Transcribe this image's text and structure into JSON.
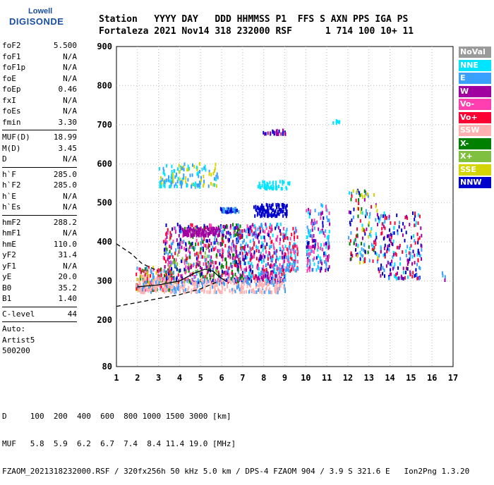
{
  "logo": {
    "line1": "Lowell",
    "line2": "DIGISONDE"
  },
  "header": {
    "line1": "Station   YYYY DAY   DDD HHMMSS P1  FFS S AXN PPS IGA PS",
    "line2": "Fortaleza 2021 Nov14 318 232000 RSF      1 714 100 10+ 11"
  },
  "params": [
    {
      "group": [
        {
          "label": "foF2",
          "value": "5.500"
        },
        {
          "label": "foF1",
          "value": "N/A"
        },
        {
          "label": "foF1p",
          "value": "N/A"
        },
        {
          "label": "foE",
          "value": "N/A"
        },
        {
          "label": "foEp",
          "value": "0.46"
        },
        {
          "label": "fxI",
          "value": "N/A"
        },
        {
          "label": "foEs",
          "value": "N/A"
        },
        {
          "label": "fmin",
          "value": "3.30"
        }
      ]
    },
    {
      "group": [
        {
          "label": "MUF(D)",
          "value": "18.99"
        },
        {
          "label": "M(D)",
          "value": "3.45"
        },
        {
          "label": "D",
          "value": "N/A"
        }
      ]
    },
    {
      "group": [
        {
          "label": "h`F",
          "value": "285.0"
        },
        {
          "label": "h`F2",
          "value": "285.0"
        },
        {
          "label": "h`E",
          "value": "N/A"
        },
        {
          "label": "h`Es",
          "value": "N/A"
        }
      ]
    },
    {
      "group": [
        {
          "label": "hmF2",
          "value": "288.2"
        },
        {
          "label": "hmF1",
          "value": "N/A"
        },
        {
          "label": "hmE",
          "value": "110.0"
        },
        {
          "label": "yF2",
          "value": "31.4"
        },
        {
          "label": "yF1",
          "value": "N/A"
        },
        {
          "label": "yE",
          "value": "20.0"
        },
        {
          "label": "B0",
          "value": "35.2"
        },
        {
          "label": "B1",
          "value": "1.40"
        }
      ]
    },
    {
      "group": [
        {
          "label": "C-level",
          "value": "44"
        }
      ]
    },
    {
      "group": [
        {
          "label": "Auto:",
          "value": ""
        },
        {
          "label": "Artist5",
          "value": ""
        },
        {
          "label": "500200",
          "value": ""
        }
      ]
    }
  ],
  "footer": {
    "d_line": "D     100  200  400  600  800 1000 1500 3000 [km]",
    "muf_line": "MUF   5.8  5.9  6.2  6.7  7.4  8.4 11.4 19.0 [MHz]",
    "file_line": "FZAOM_2021318232000.RSF / 320fx256h 50 kHz 5.0 km / DPS-4 FZAOM 904 / 3.9 S 321.6 E   Ion2Png 1.3.20"
  },
  "chart_data": {
    "type": "scatter",
    "title": "",
    "xlabel": "",
    "ylabel": "",
    "xlim": [
      1,
      17
    ],
    "ylim": [
      80,
      900
    ],
    "x_ticks": [
      1,
      2,
      3,
      4,
      5,
      6,
      7,
      8,
      9,
      10,
      11,
      12,
      13,
      14,
      15,
      16,
      17
    ],
    "y_ticks": [
      80,
      200,
      300,
      400,
      500,
      600,
      700,
      800,
      900
    ],
    "grid": true,
    "legend_position": "right",
    "legend": [
      {
        "name": "NoVal",
        "color": "#9a9a9a"
      },
      {
        "name": "NNE",
        "color": "#00e5ff"
      },
      {
        "name": "E",
        "color": "#3aa0ff"
      },
      {
        "name": "W",
        "color": "#a000a0"
      },
      {
        "name": "Vo-",
        "color": "#ff3fb0"
      },
      {
        "name": "Vo+",
        "color": "#ff0033"
      },
      {
        "name": "SSW",
        "color": "#ffb0b0"
      },
      {
        "name": "X-",
        "color": "#008000"
      },
      {
        "name": "X+",
        "color": "#80c040"
      },
      {
        "name": "SSE",
        "color": "#d4d400"
      },
      {
        "name": "NNW",
        "color": "#0000cc"
      }
    ],
    "clusters": [
      {
        "x": [
          1.9,
          3.6
        ],
        "y": [
          280,
          340
        ],
        "n": 220,
        "colors": [
          4,
          5,
          6,
          2,
          7,
          9
        ]
      },
      {
        "x": [
          3.2,
          5.9
        ],
        "y": [
          300,
          450
        ],
        "n": 420,
        "colors": [
          3,
          4,
          5,
          2,
          7,
          10,
          8
        ]
      },
      {
        "x": [
          5.9,
          7.0
        ],
        "y": [
          300,
          450
        ],
        "n": 240,
        "colors": [
          2,
          4,
          5,
          7,
          10,
          3
        ]
      },
      {
        "x": [
          7.0,
          9.0
        ],
        "y": [
          300,
          450
        ],
        "n": 380,
        "colors": [
          2,
          1,
          10,
          4,
          5,
          3
        ]
      },
      {
        "x": [
          9.0,
          9.6
        ],
        "y": [
          330,
          440
        ],
        "n": 90,
        "colors": [
          2,
          1,
          4,
          5
        ]
      },
      {
        "x": [
          2.0,
          9.0
        ],
        "y": [
          275,
          310
        ],
        "n": 320,
        "colors": [
          6,
          6,
          6,
          2
        ]
      },
      {
        "x": [
          10.0,
          11.1
        ],
        "y": [
          330,
          500
        ],
        "n": 160,
        "colors": [
          2,
          1,
          10,
          4,
          3
        ]
      },
      {
        "x": [
          12.0,
          13.4
        ],
        "y": [
          350,
          540
        ],
        "n": 130,
        "colors": [
          10,
          5,
          2,
          1,
          3,
          7,
          9
        ]
      },
      {
        "x": [
          13.4,
          15.5
        ],
        "y": [
          310,
          480
        ],
        "n": 200,
        "colors": [
          10,
          2,
          1,
          5,
          3
        ]
      },
      {
        "x": [
          3.0,
          5.8
        ],
        "y": [
          545,
          605
        ],
        "n": 150,
        "colors": [
          2,
          1,
          9
        ]
      },
      {
        "x": [
          4.1,
          5.9
        ],
        "y": [
          420,
          440
        ],
        "n": 100,
        "colors": [
          3
        ]
      },
      {
        "x": [
          5.9,
          6.8
        ],
        "y": [
          480,
          490
        ],
        "n": 60,
        "colors": [
          2,
          10
        ]
      },
      {
        "x": [
          7.5,
          9.1
        ],
        "y": [
          470,
          500
        ],
        "n": 110,
        "colors": [
          10
        ]
      },
      {
        "x": [
          7.7,
          9.2
        ],
        "y": [
          540,
          560
        ],
        "n": 50,
        "colors": [
          1
        ]
      },
      {
        "x": [
          7.9,
          9.0
        ],
        "y": [
          680,
          690
        ],
        "n": 30,
        "colors": [
          10,
          3
        ]
      },
      {
        "x": [
          11.1,
          11.6
        ],
        "y": [
          705,
          715
        ],
        "n": 6,
        "colors": [
          1
        ]
      },
      {
        "x": [
          16.4,
          16.8
        ],
        "y": [
          300,
          330
        ],
        "n": 4,
        "colors": [
          3,
          2
        ]
      }
    ],
    "trace_curves": [
      {
        "name": "virtual-trace-dashed",
        "style": "dashed",
        "points": [
          [
            1.0,
            235
          ],
          [
            2.0,
            245
          ],
          [
            3.0,
            255
          ],
          [
            4.0,
            265
          ],
          [
            5.0,
            280
          ],
          [
            5.9,
            300
          ]
        ]
      },
      {
        "name": "virtual-trace-dashed-upper",
        "style": "dashed",
        "points": [
          [
            1.0,
            395
          ],
          [
            1.7,
            370
          ],
          [
            2.2,
            345
          ],
          [
            3.0,
            325
          ]
        ]
      },
      {
        "name": "profile-trace",
        "style": "solid",
        "points": [
          [
            2.0,
            285
          ],
          [
            3.0,
            290
          ],
          [
            4.0,
            300
          ],
          [
            4.7,
            320
          ],
          [
            5.2,
            330
          ],
          [
            5.6,
            325
          ],
          [
            5.9,
            310
          ],
          [
            6.2,
            300
          ]
        ]
      }
    ]
  }
}
